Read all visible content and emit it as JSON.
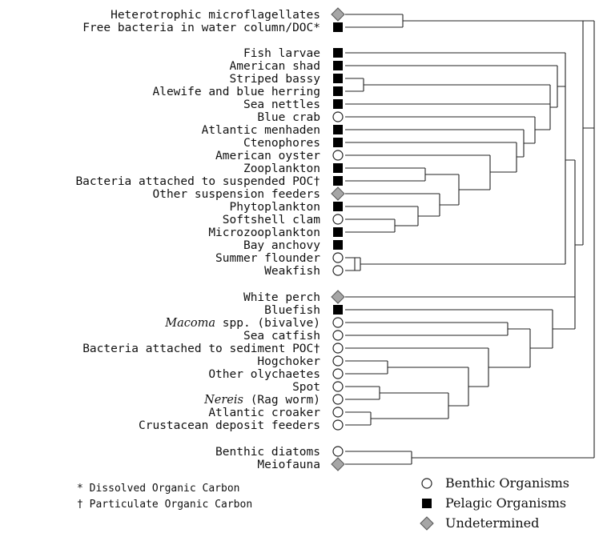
{
  "taxa": [
    {
      "label": "Heterotrophic microflagellates",
      "type": "undetermined"
    },
    {
      "label": "Free bacteria in water column/DOC*",
      "type": "pelagic"
    },
    {
      "label": "Fish larvae",
      "type": "pelagic"
    },
    {
      "label": "American shad",
      "type": "pelagic"
    },
    {
      "label": "Striped bassy",
      "type": "pelagic"
    },
    {
      "label": "Alewife and blue herring",
      "type": "pelagic"
    },
    {
      "label": "Sea nettles",
      "type": "pelagic"
    },
    {
      "label": "Blue crab",
      "type": "benthic"
    },
    {
      "label": "Atlantic menhaden",
      "type": "pelagic"
    },
    {
      "label": "Ctenophores",
      "type": "pelagic"
    },
    {
      "label": "American oyster",
      "type": "benthic"
    },
    {
      "label": "Zooplankton",
      "type": "pelagic"
    },
    {
      "label": "Bacteria attached to suspended POC†",
      "type": "pelagic"
    },
    {
      "label": "Other suspension feeders",
      "type": "undetermined"
    },
    {
      "label": "Phytoplankton",
      "type": "pelagic"
    },
    {
      "label": "Softshell clam",
      "type": "benthic"
    },
    {
      "label": "Microzooplankton",
      "type": "pelagic"
    },
    {
      "label": "Bay anchovy",
      "type": "pelagic"
    },
    {
      "label": "Summer flounder",
      "type": "benthic"
    },
    {
      "label": "Weakfish",
      "type": "benthic"
    },
    {
      "label": "White perch",
      "type": "undetermined"
    },
    {
      "label": "Bluefish",
      "type": "pelagic"
    },
    {
      "label": "Macoma spp. (bivalve)",
      "type": "benthic",
      "italic_part": "Macoma",
      "rest": " spp. (bivalve)"
    },
    {
      "label": "Sea catfish",
      "type": "benthic"
    },
    {
      "label": "Bacteria attached to sediment POC†",
      "type": "benthic"
    },
    {
      "label": "Hogchoker",
      "type": "benthic"
    },
    {
      "label": "Other olychaetes",
      "type": "benthic"
    },
    {
      "label": "Spot",
      "type": "benthic"
    },
    {
      "label": "Nereis (Rag worm)",
      "type": "benthic",
      "italic_part": "Nereis",
      "rest": " (Rag worm)"
    },
    {
      "label": "Atlantic croaker",
      "type": "benthic"
    },
    {
      "label": "Crustacean deposit feeders",
      "type": "benthic"
    },
    {
      "label": "Benthic diatoms",
      "type": "benthic"
    },
    {
      "label": "Meiofauna",
      "type": "undetermined"
    }
  ],
  "footnotes": {
    "dissolved": "* Dissolved Organic Carbon",
    "particulate": "† Particulate Organic Carbon"
  },
  "legend": {
    "benthic": "Benthic Organisms",
    "pelagic": "Pelagic Organisms",
    "undetermined": "Undetermined"
  },
  "colors": {
    "pelagic": "#000000",
    "benthic": "#ffffff",
    "undetermined": "#a6a6a6",
    "outline": "#222222"
  }
}
